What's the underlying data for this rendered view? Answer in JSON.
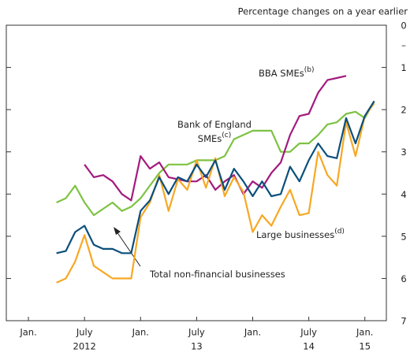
{
  "chart_data": {
    "type": "line",
    "subtitle": "Percentage changes on a year earlier",
    "y_sign": "–",
    "y_inverted": true,
    "ylim": [
      0,
      7
    ],
    "yticks": [
      0,
      1,
      2,
      3,
      4,
      5,
      6,
      7
    ],
    "xlim": [
      "2011-10-20",
      "2015-03-10"
    ],
    "xticks": [
      {
        "value": "2012-01",
        "label": "Jan."
      },
      {
        "value": "2012-07",
        "label": "July"
      },
      {
        "value": "2013-01",
        "label": "Jan."
      },
      {
        "value": "2013-07",
        "label": "July"
      },
      {
        "value": "2014-01",
        "label": "Jan."
      },
      {
        "value": "2014-07",
        "label": "July"
      },
      {
        "value": "2015-01",
        "label": "Jan."
      }
    ],
    "x_year_labels": [
      {
        "value": "2012-07",
        "label": "2012"
      },
      {
        "value": "2013-07",
        "label": "13"
      },
      {
        "value": "2014-07",
        "label": "14"
      },
      {
        "value": "2015-01",
        "label": "15"
      }
    ],
    "x": [
      "2012-04",
      "2012-05",
      "2012-06",
      "2012-07",
      "2012-08",
      "2012-09",
      "2012-10",
      "2012-11",
      "2012-12",
      "2013-01",
      "2013-02",
      "2013-03",
      "2013-04",
      "2013-05",
      "2013-06",
      "2013-07",
      "2013-08",
      "2013-09",
      "2013-10",
      "2013-11",
      "2013-12",
      "2014-01",
      "2014-02",
      "2014-03",
      "2014-04",
      "2014-05",
      "2014-06",
      "2014-07",
      "2014-08",
      "2014-09",
      "2014-10",
      "2014-11",
      "2014-12",
      "2015-01",
      "2015-02"
    ],
    "series": [
      {
        "label": {
          "lines": [
            "Bank of England",
            "SMEs"
          ],
          "note": "(c)"
        },
        "color": "#7dc242",
        "values": [
          4.2,
          4.1,
          3.8,
          4.2,
          4.5,
          4.35,
          4.2,
          4.4,
          4.3,
          4.1,
          3.8,
          3.5,
          3.3,
          3.3,
          3.3,
          3.2,
          3.2,
          3.2,
          3.1,
          2.7,
          2.6,
          2.5,
          2.5,
          2.5,
          3.0,
          3.0,
          2.8,
          2.8,
          2.6,
          2.35,
          2.3,
          2.1,
          2.05,
          2.2,
          1.8
        ]
      },
      {
        "label": {
          "lines": [
            "BBA SMEs"
          ],
          "note": "(b)"
        },
        "color": "#a31a7e",
        "values": [
          null,
          null,
          null,
          3.3,
          3.6,
          3.55,
          3.7,
          4.0,
          4.15,
          3.1,
          3.4,
          3.25,
          3.6,
          3.65,
          3.7,
          3.7,
          3.55,
          3.9,
          3.7,
          3.55,
          4.0,
          3.7,
          3.85,
          3.5,
          3.25,
          2.6,
          2.15,
          2.1,
          1.6,
          1.3,
          1.25,
          1.2,
          null,
          null,
          null
        ]
      },
      {
        "label": {
          "lines": [
            "Large businesses"
          ],
          "note": "(d)"
        },
        "color": "#f7a823",
        "values": [
          6.1,
          6.0,
          5.6,
          4.97,
          5.7,
          5.85,
          6.0,
          6.0,
          6.0,
          4.55,
          4.2,
          3.55,
          4.4,
          3.65,
          3.9,
          3.2,
          3.85,
          3.15,
          4.05,
          3.6,
          3.95,
          4.9,
          4.5,
          4.75,
          4.3,
          3.9,
          4.5,
          4.45,
          3.0,
          3.55,
          3.8,
          2.3,
          3.1,
          2.15,
          1.85
        ]
      },
      {
        "label": {
          "lines": [
            "Total non-financial businesses"
          ]
        },
        "color": "#0b4f7c",
        "values": [
          5.4,
          5.35,
          4.9,
          4.75,
          5.2,
          5.3,
          5.3,
          5.4,
          5.4,
          4.4,
          4.15,
          3.6,
          4.0,
          3.6,
          3.7,
          3.3,
          3.6,
          3.2,
          3.9,
          3.4,
          3.7,
          4.05,
          3.7,
          4.05,
          4.0,
          3.35,
          3.7,
          3.2,
          2.8,
          3.1,
          3.15,
          2.2,
          2.8,
          2.15,
          1.8
        ]
      }
    ]
  }
}
